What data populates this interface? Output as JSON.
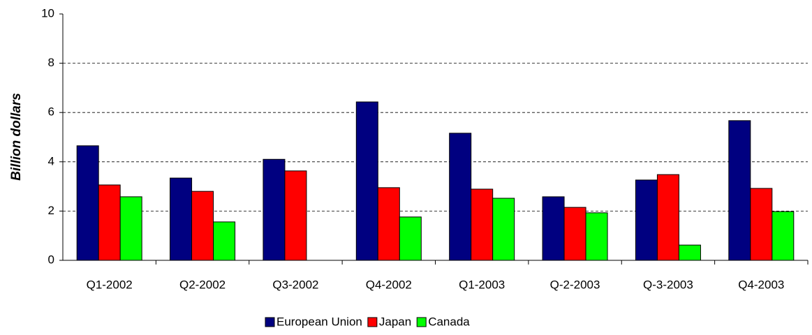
{
  "chart_data": {
    "type": "bar",
    "y_label": "Billion dollars",
    "categories": [
      "Q1-2002",
      "Q2-2002",
      "Q3-2002",
      "Q4-2002",
      "Q1-2003",
      "Q-2-2003",
      "Q-3-2003",
      "Q4-2003"
    ],
    "series": [
      {
        "name": "European Union",
        "color": "#000080",
        "values": [
          4.65,
          3.34,
          4.1,
          6.43,
          5.16,
          2.58,
          3.26,
          5.67
        ]
      },
      {
        "name": "Japan",
        "color": "#ff0000",
        "values": [
          3.06,
          2.8,
          3.63,
          2.95,
          2.89,
          2.15,
          3.48,
          2.92
        ]
      },
      {
        "name": "Canada",
        "color": "#00ff00",
        "values": [
          2.58,
          1.56,
          null,
          1.76,
          2.52,
          1.93,
          0.62,
          1.98
        ]
      }
    ],
    "ylim": [
      0,
      10
    ],
    "yticks": [
      0,
      2,
      4,
      6,
      8,
      10
    ],
    "grid": true
  }
}
